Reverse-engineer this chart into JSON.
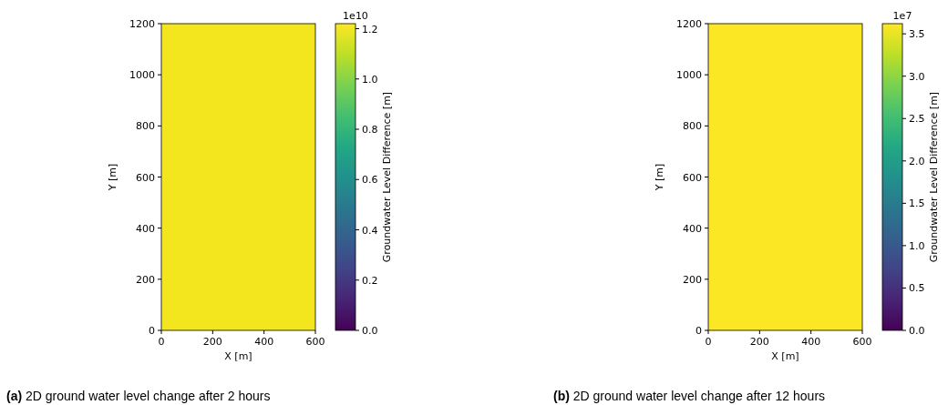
{
  "chart_data": [
    {
      "type": "heatmap",
      "xlabel": "X [m]",
      "ylabel": "Y [m]",
      "clabel": "Groundwater Level Difference [m]",
      "xlim": [
        0,
        600
      ],
      "ylim": [
        0,
        1200
      ],
      "xticks": [
        0,
        200,
        400,
        600
      ],
      "yticks": [
        0,
        200,
        400,
        600,
        800,
        1000,
        1200
      ],
      "cells": [
        [
          1.2
        ]
      ],
      "clim": [
        0,
        1.22
      ],
      "cticks": [
        {
          "value": 0,
          "label": "0.0"
        },
        {
          "value": 0.2,
          "label": "0.2"
        },
        {
          "value": 0.4,
          "label": "0.4"
        },
        {
          "value": 0.6,
          "label": "0.6"
        },
        {
          "value": 0.8,
          "label": "0.8"
        },
        {
          "value": 1,
          "label": "1.0"
        },
        {
          "value": 1.2,
          "label": "1.2"
        }
      ],
      "annotations": [
        "1e10",
        "(a) 2D ground water level change after 2 hours"
      ]
    },
    {
      "type": "heatmap",
      "xlabel": "X [m]",
      "ylabel": "Y [m]",
      "clabel": "Groundwater Level Difference [m]",
      "xlim": [
        0,
        600
      ],
      "ylim": [
        0,
        1200
      ],
      "xticks": [
        0,
        200,
        400,
        600
      ],
      "yticks": [
        0,
        200,
        400,
        600,
        800,
        1000,
        1200
      ],
      "cells": [
        [
          3.6
        ]
      ],
      "clim": [
        0,
        3.62
      ],
      "cticks": [
        {
          "value": 0,
          "label": "0.0"
        },
        {
          "value": 0.5,
          "label": "0.5"
        },
        {
          "value": 1,
          "label": "1.0"
        },
        {
          "value": 1.5,
          "label": "1.5"
        },
        {
          "value": 2,
          "label": "2.0"
        },
        {
          "value": 2.5,
          "label": "2.5"
        },
        {
          "value": 3,
          "label": "3.0"
        },
        {
          "value": 3.5,
          "label": "3.5"
        }
      ],
      "annotations": [
        "1e7",
        "(b) 2D ground water level change after 12 hours"
      ]
    }
  ]
}
